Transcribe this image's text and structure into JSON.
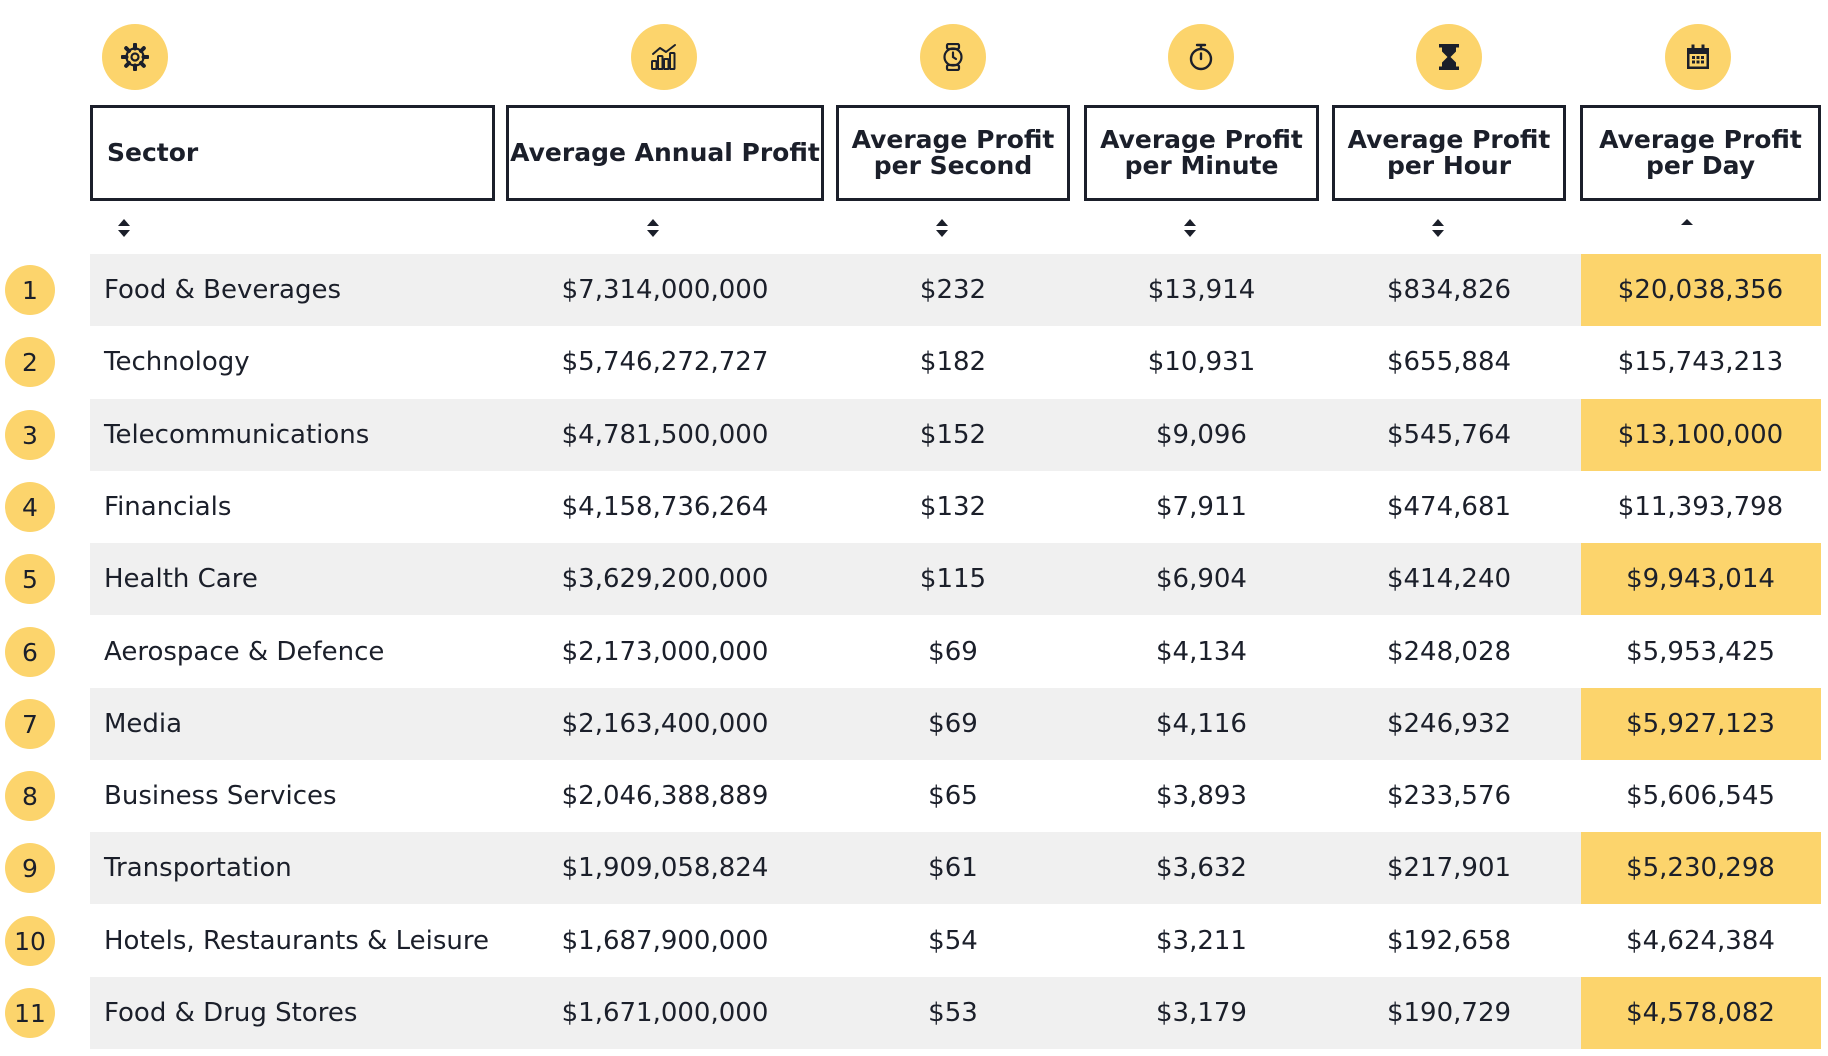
{
  "chart_data": {
    "type": "table",
    "icons": [
      "gear-icon",
      "bar-chart-icon",
      "stopwatch-icon",
      "timer-icon",
      "hourglass-icon",
      "calendar-icon"
    ],
    "columns": [
      "Sector",
      "Average Annual Profit",
      "Average Profit per Second",
      "Average Profit per Minute",
      "Average Profit per Hour",
      "Average Profit per Day"
    ],
    "sorted_column": "Average Profit per Day",
    "colors": {
      "accent": "#fcd46c",
      "row_stripe": "#f0f0f0",
      "text": "#1b1f2a"
    },
    "rows": [
      {
        "rank": "1",
        "sector": "Food & Beverages",
        "annual": "$7,314,000,000",
        "second": "$232",
        "minute": "$13,914",
        "hour": "$834,826",
        "day": "$20,038,356"
      },
      {
        "rank": "2",
        "sector": "Technology",
        "annual": "$5,746,272,727",
        "second": "$182",
        "minute": "$10,931",
        "hour": "$655,884",
        "day": "$15,743,213"
      },
      {
        "rank": "3",
        "sector": "Telecommunications",
        "annual": "$4,781,500,000",
        "second": "$152",
        "minute": "$9,096",
        "hour": "$545,764",
        "day": "$13,100,000"
      },
      {
        "rank": "4",
        "sector": "Financials",
        "annual": "$4,158,736,264",
        "second": "$132",
        "minute": "$7,911",
        "hour": "$474,681",
        "day": "$11,393,798"
      },
      {
        "rank": "5",
        "sector": "Health Care",
        "annual": "$3,629,200,000",
        "second": "$115",
        "minute": "$6,904",
        "hour": "$414,240",
        "day": "$9,943,014"
      },
      {
        "rank": "6",
        "sector": "Aerospace & Defence",
        "annual": "$2,173,000,000",
        "second": "$69",
        "minute": "$4,134",
        "hour": "$248,028",
        "day": "$5,953,425"
      },
      {
        "rank": "7",
        "sector": "Media",
        "annual": "$2,163,400,000",
        "second": "$69",
        "minute": "$4,116",
        "hour": "$246,932",
        "day": "$5,927,123"
      },
      {
        "rank": "8",
        "sector": "Business Services",
        "annual": "$2,046,388,889",
        "second": "$65",
        "minute": "$3,893",
        "hour": "$233,576",
        "day": "$5,606,545"
      },
      {
        "rank": "9",
        "sector": "Transportation",
        "annual": "$1,909,058,824",
        "second": "$61",
        "minute": "$3,632",
        "hour": "$217,901",
        "day": "$5,230,298"
      },
      {
        "rank": "10",
        "sector": "Hotels, Restaurants & Leisure",
        "annual": "$1,687,900,000",
        "second": "$54",
        "minute": "$3,211",
        "hour": "$192,658",
        "day": "$4,624,384"
      },
      {
        "rank": "11",
        "sector": "Food & Drug Stores",
        "annual": "$1,671,000,000",
        "second": "$53",
        "minute": "$3,179",
        "hour": "$190,729",
        "day": "$4,578,082"
      }
    ]
  }
}
